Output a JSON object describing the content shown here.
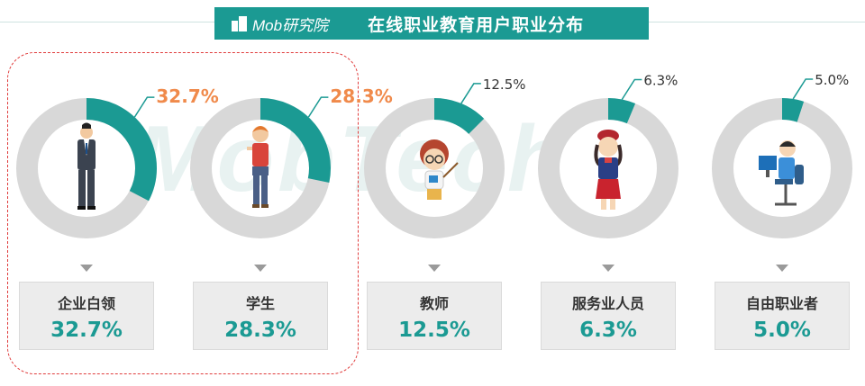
{
  "header": {
    "logo_text": "Mob研究院",
    "title": "在线职业教育用户职业分布"
  },
  "watermark": "MobTech",
  "colors": {
    "accent": "#1b9a93",
    "track": "#d8d8d8",
    "highlight_label": "#f08a4b",
    "normal_label": "#333333"
  },
  "chart_data": {
    "type": "pie",
    "categories": [
      "企业白领",
      "学生",
      "教师",
      "服务业人员",
      "自由职业者"
    ],
    "values": [
      32.7,
      28.3,
      12.5,
      6.3,
      5.0
    ],
    "labels": [
      "32.7%",
      "28.3%",
      "12.5%",
      "6.3%",
      "5.0%"
    ],
    "highlighted": [
      true,
      true,
      false,
      false,
      false
    ],
    "icons": [
      "businessman-icon",
      "student-icon",
      "teacher-icon",
      "flight-attendant-icon",
      "freelancer-icon"
    ]
  }
}
